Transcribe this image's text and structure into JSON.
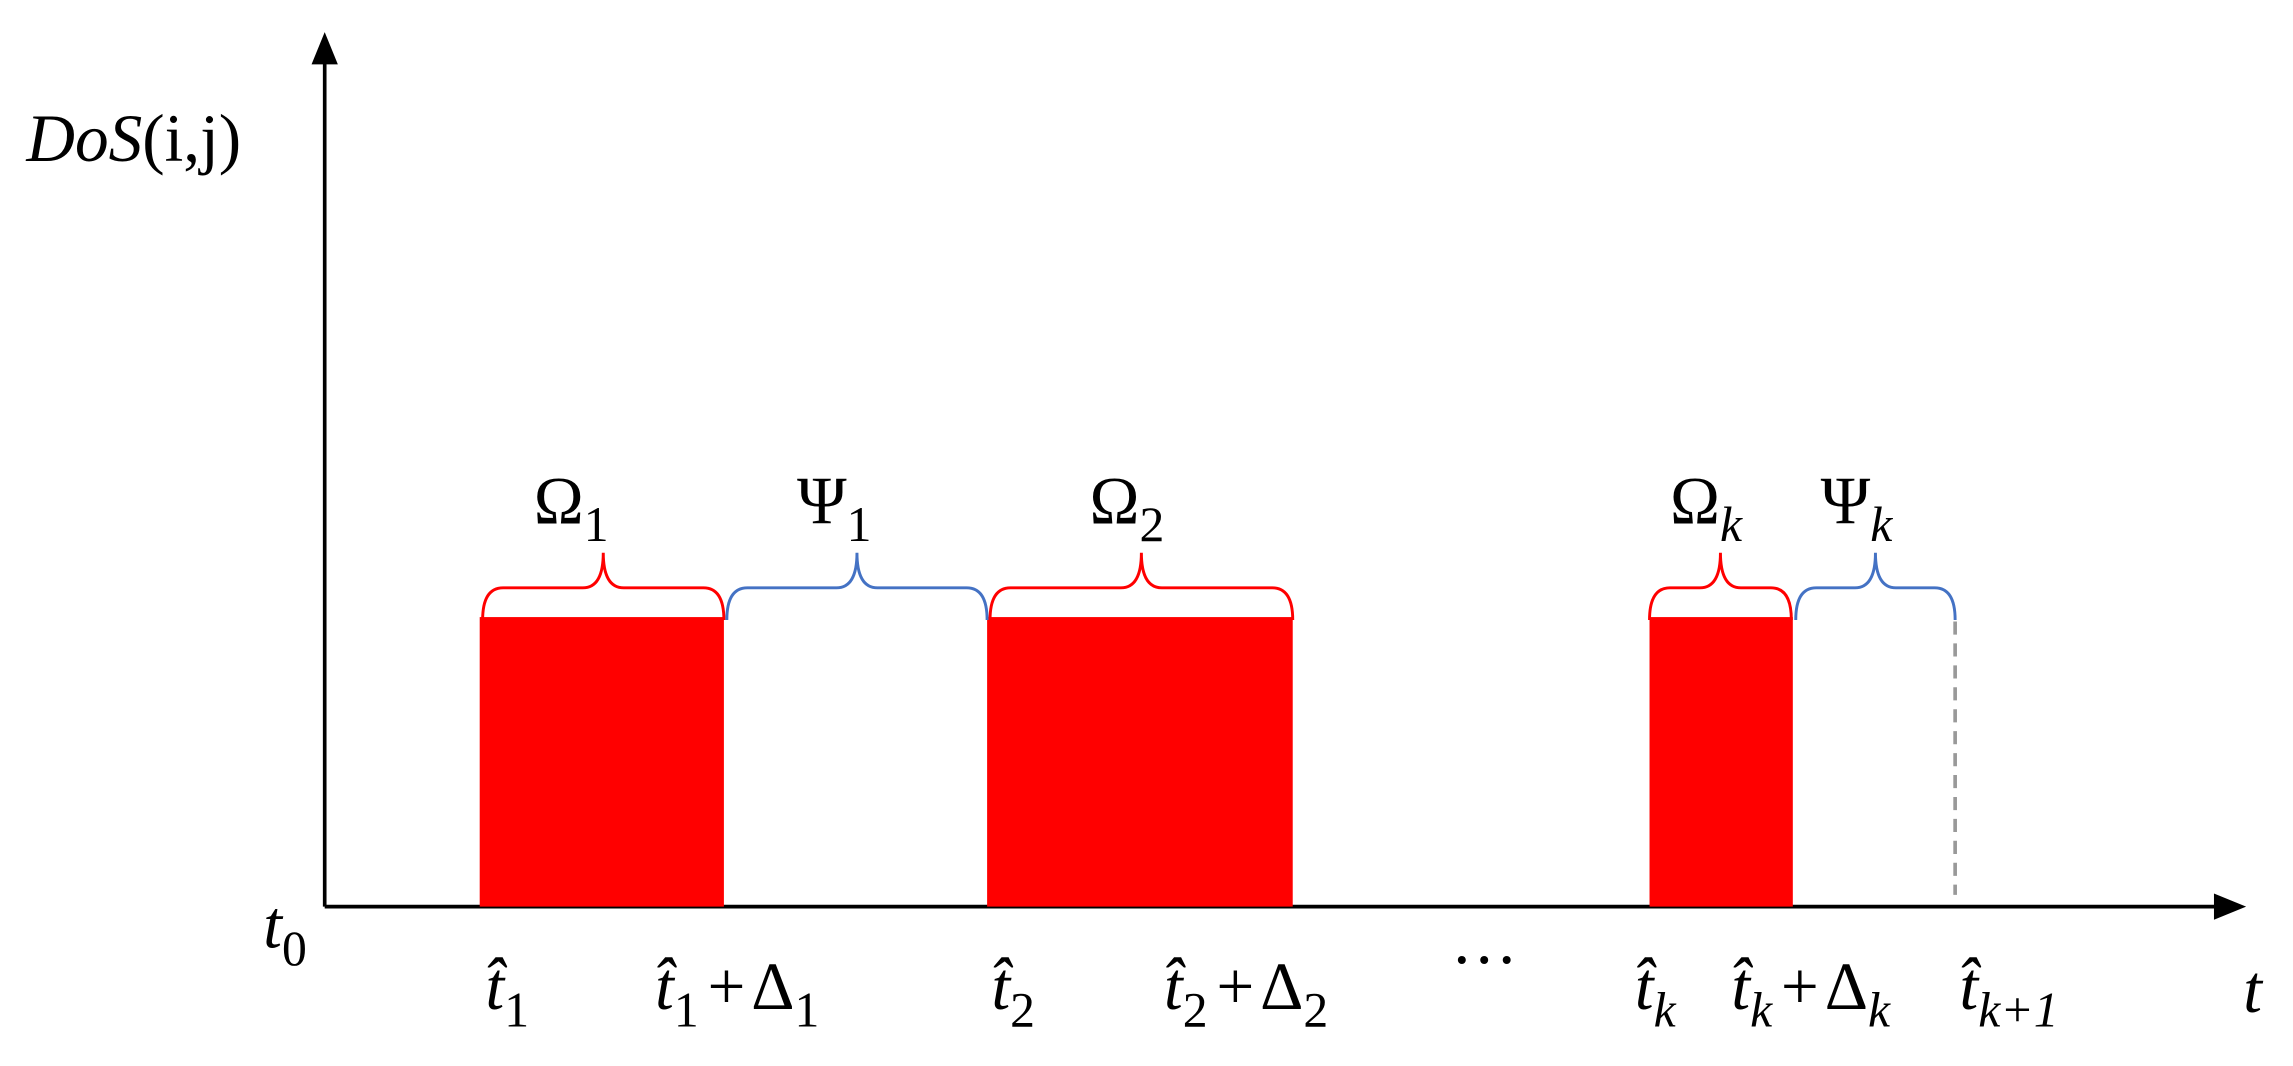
{
  "y_axis_label": {
    "name": "DoS",
    "args": "(i,j)"
  },
  "x_axis_label": "t",
  "origin": {
    "base": "t",
    "sub": "0"
  },
  "ticks": [
    {
      "base": "t̂",
      "sub": "1"
    },
    {
      "base": "t̂",
      "sub": "1",
      "op": "+",
      "delta": "Δ",
      "delta_sub": "1"
    },
    {
      "base": "t̂",
      "sub": "2"
    },
    {
      "base": "t̂",
      "sub": "2",
      "op": "+",
      "delta": "Δ",
      "delta_sub": "2"
    },
    {
      "base": "···"
    },
    {
      "base": "t̂",
      "sub": "k"
    },
    {
      "base": "t̂",
      "sub": "k",
      "op": "+",
      "delta": "Δ",
      "delta_sub": "k"
    },
    {
      "base": "t̂",
      "sub": "k+1"
    }
  ],
  "braces": [
    {
      "base": "Ω",
      "sub": "1"
    },
    {
      "base": "Ψ",
      "sub": "1"
    },
    {
      "base": "Ω",
      "sub": "2"
    },
    {
      "base": "Ω",
      "sub": "k"
    },
    {
      "base": "Ψ",
      "sub": "k"
    }
  ]
}
